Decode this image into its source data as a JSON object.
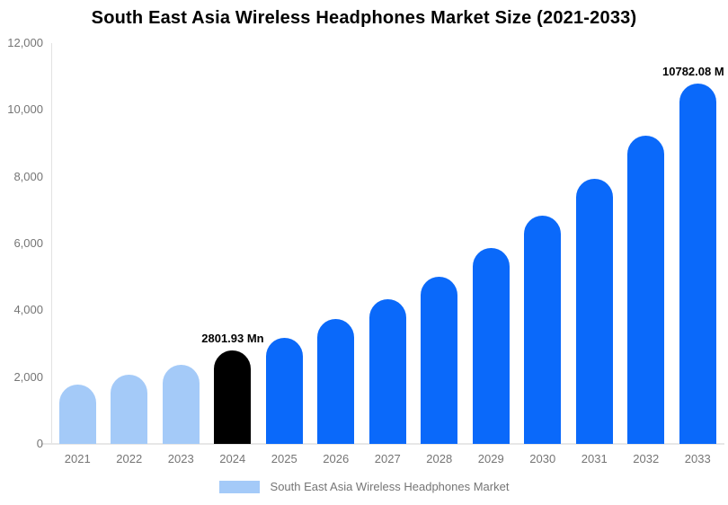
{
  "header": {
    "title": "South East Asia Wireless Headphones Market Size (2021-2033)"
  },
  "legend": {
    "label": "South East Asia Wireless Headphones Market",
    "swatch_color": "#a4caf8"
  },
  "colors": {
    "historical_bar": "#a4caf8",
    "highlight_bar": "#000000",
    "forecast_bar": "#0a69fa",
    "axis_line": "#e2e2e2",
    "baseline": "#e7e7e7",
    "axis_text": "#757575",
    "annotation_text": "#000000"
  },
  "chart_data": {
    "type": "bar",
    "title": "South East Asia Wireless Headphones Market Size (2021-2033)",
    "xlabel": "",
    "ylabel": "",
    "categories": [
      "2021",
      "2022",
      "2023",
      "2024",
      "2025",
      "2026",
      "2027",
      "2028",
      "2029",
      "2030",
      "2031",
      "2032",
      "2033"
    ],
    "values": [
      1770,
      2080,
      2370,
      2801.93,
      3180,
      3740,
      4340,
      5000,
      5870,
      6830,
      7930,
      9240,
      10782.08
    ],
    "bar_colors": [
      "#a4caf8",
      "#a4caf8",
      "#a4caf8",
      "#000000",
      "#0a69fa",
      "#0a69fa",
      "#0a69fa",
      "#0a69fa",
      "#0a69fa",
      "#0a69fa",
      "#0a69fa",
      "#0a69fa",
      "#0a69fa"
    ],
    "ylim": [
      0,
      12000
    ],
    "ytick_labels": [
      "0",
      "2,000",
      "4,000",
      "6,000",
      "8,000",
      "10,000",
      "12,000"
    ],
    "grid": false,
    "legend_position": "bottom",
    "annotations": [
      {
        "category": "2024",
        "text": "2801.93 Mn"
      },
      {
        "category": "2033",
        "text": "10782.08 M"
      }
    ]
  }
}
